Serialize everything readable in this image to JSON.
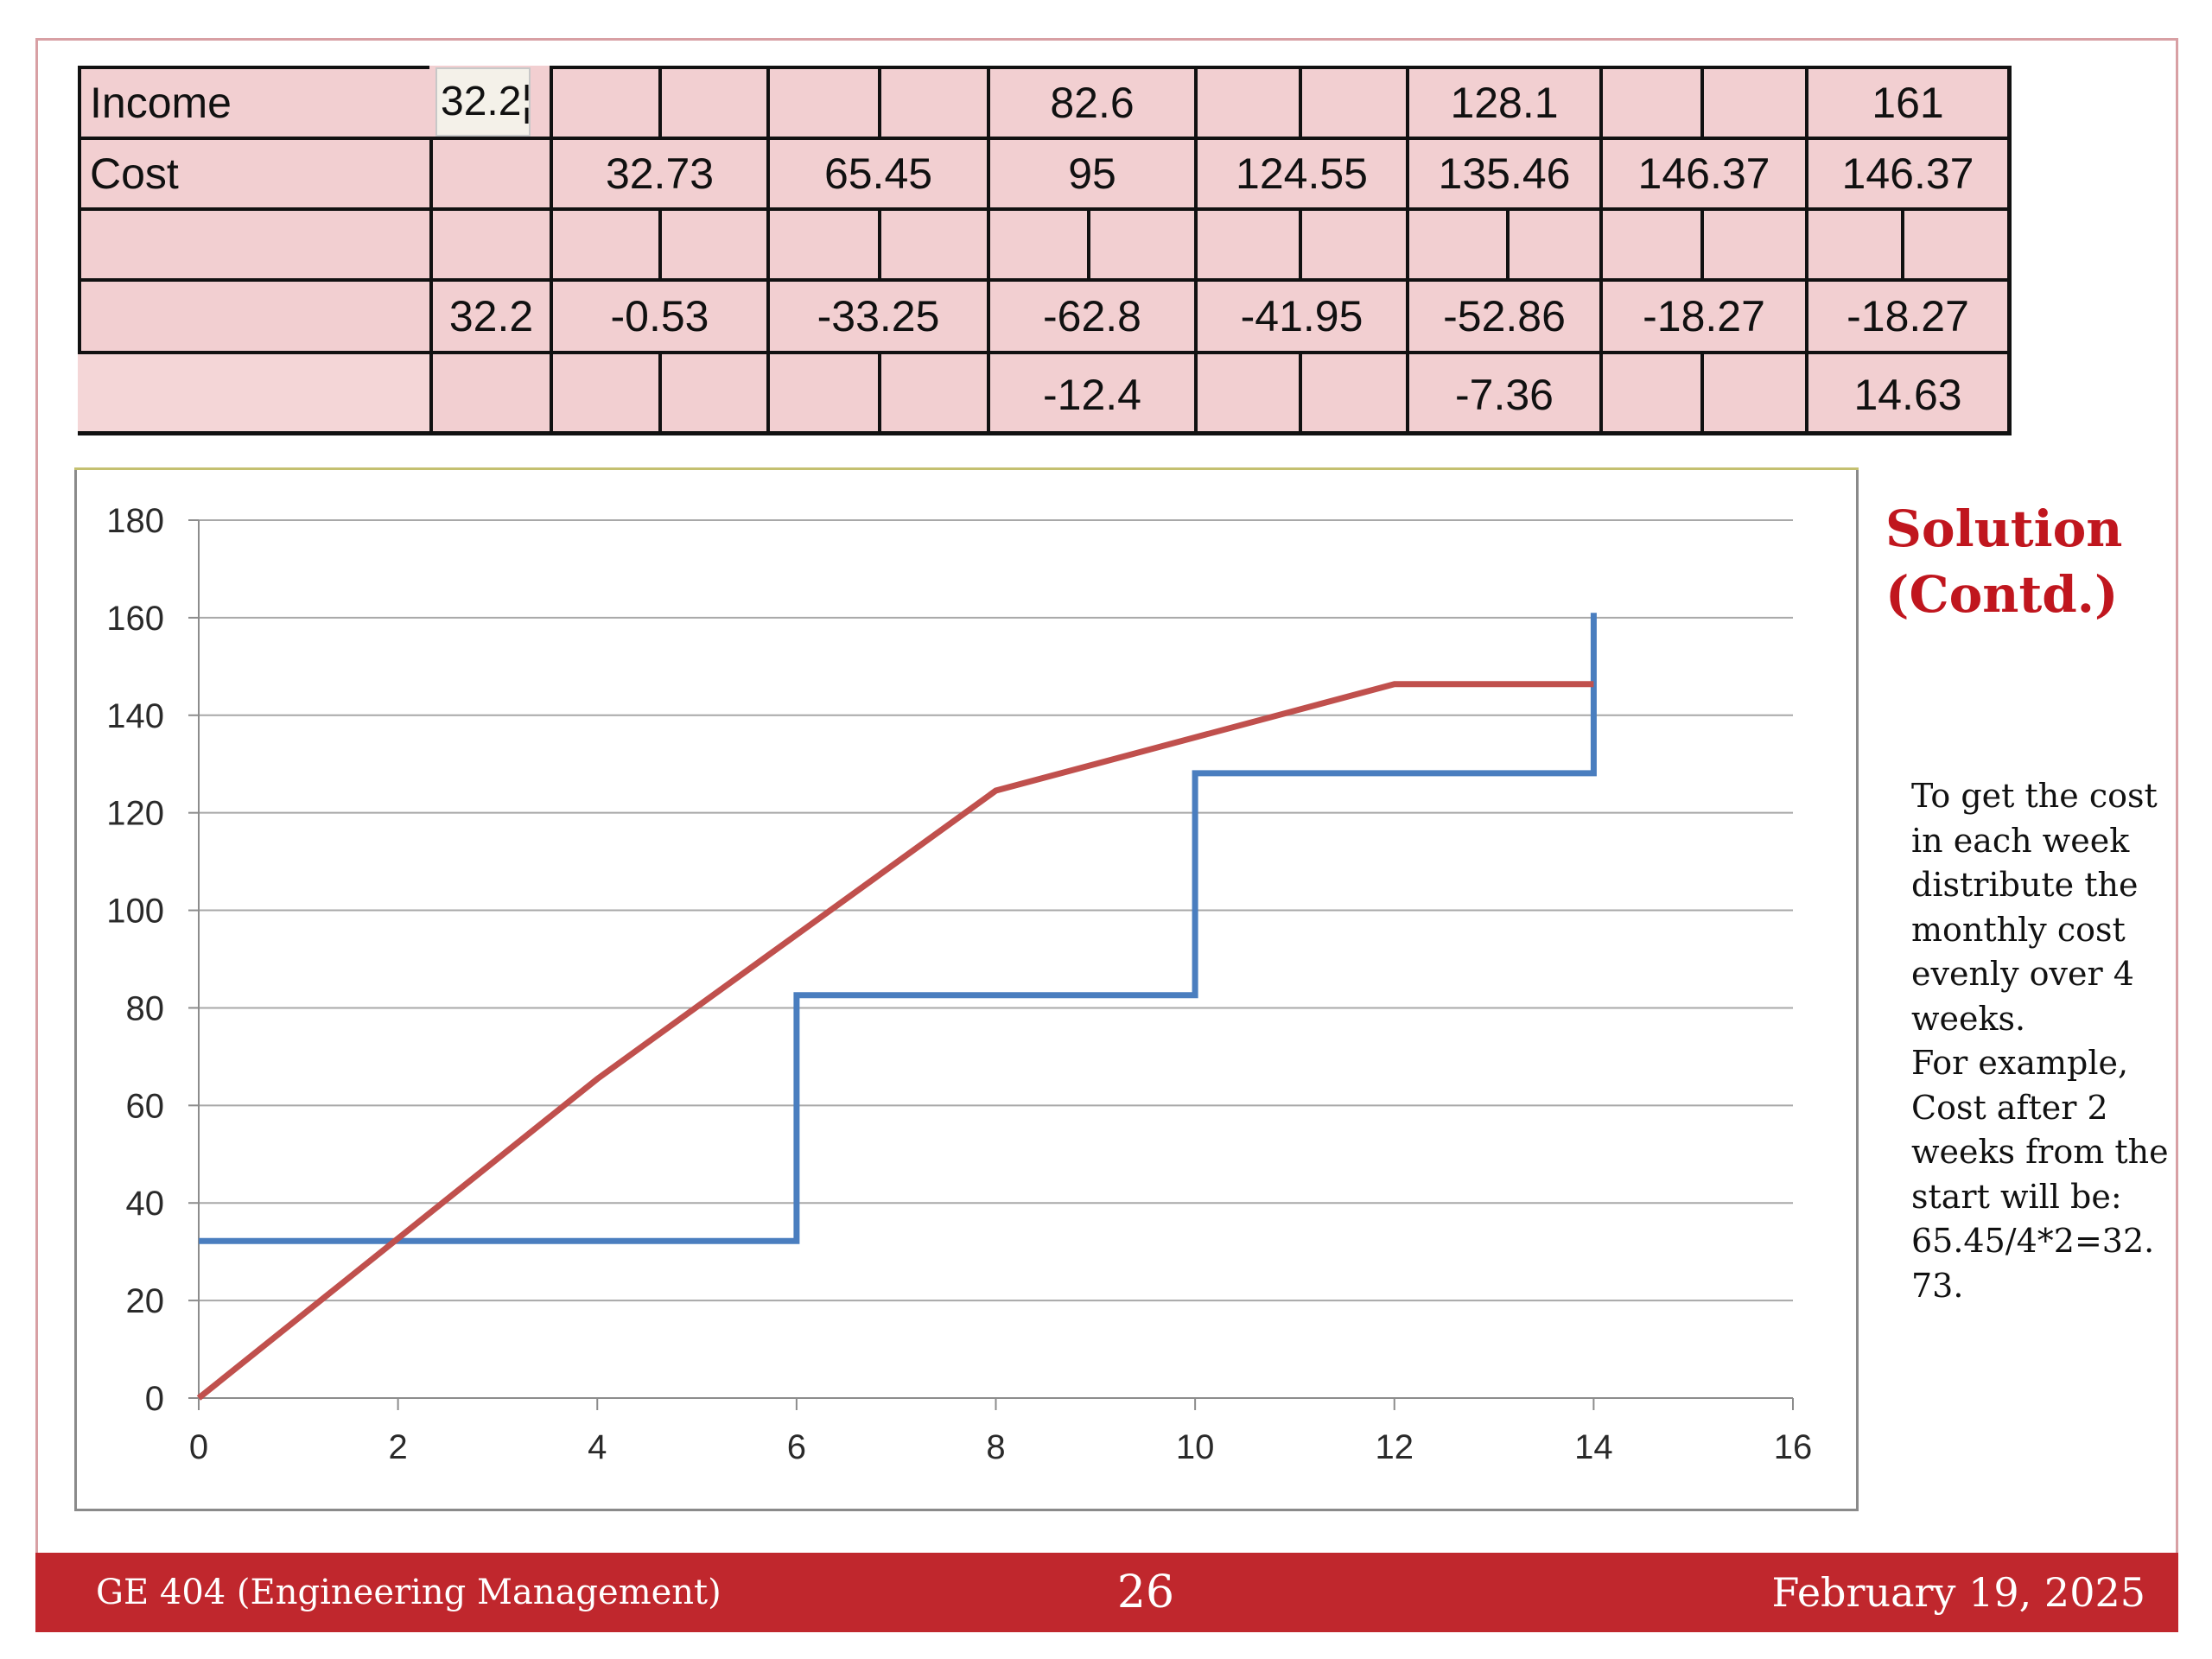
{
  "table": {
    "rows": [
      {
        "label": "Income",
        "note": "32.2¦",
        "cells": [
          {
            "span": [
              2,
              3
            ],
            "text": ""
          },
          {
            "span": [
              3,
              4
            ],
            "text": ""
          },
          {
            "span": [
              4,
              5
            ],
            "text": ""
          },
          {
            "span": [
              5,
              6
            ],
            "text": ""
          },
          {
            "span": [
              6,
              8
            ],
            "text": "82.6"
          },
          {
            "span": [
              8,
              9
            ],
            "text": ""
          },
          {
            "span": [
              9,
              10
            ],
            "text": ""
          },
          {
            "span": [
              10,
              12
            ],
            "text": "128.1"
          },
          {
            "span": [
              12,
              13
            ],
            "text": ""
          },
          {
            "span": [
              13,
              14
            ],
            "text": ""
          },
          {
            "span": [
              14,
              16
            ],
            "text": "161"
          }
        ]
      },
      {
        "label": "Cost",
        "cells": [
          {
            "span": [
              1,
              2
            ],
            "text": ""
          },
          {
            "span": [
              2,
              4
            ],
            "text": "32.73"
          },
          {
            "span": [
              4,
              6
            ],
            "text": "65.45"
          },
          {
            "span": [
              6,
              8
            ],
            "text": "95"
          },
          {
            "span": [
              8,
              10
            ],
            "text": "124.55"
          },
          {
            "span": [
              10,
              12
            ],
            "text": "135.46"
          },
          {
            "span": [
              12,
              14
            ],
            "text": "146.37"
          },
          {
            "span": [
              14,
              16
            ],
            "text": "146.37"
          }
        ]
      },
      {
        "label": "",
        "cells": [
          {
            "span": [
              1,
              2
            ],
            "text": ""
          },
          {
            "span": [
              2,
              3
            ],
            "text": ""
          },
          {
            "span": [
              3,
              4
            ],
            "text": ""
          },
          {
            "span": [
              4,
              5
            ],
            "text": ""
          },
          {
            "span": [
              5,
              6
            ],
            "text": ""
          },
          {
            "span": [
              6,
              7
            ],
            "text": ""
          },
          {
            "span": [
              7,
              8
            ],
            "text": ""
          },
          {
            "span": [
              8,
              9
            ],
            "text": ""
          },
          {
            "span": [
              9,
              10
            ],
            "text": ""
          },
          {
            "span": [
              10,
              11
            ],
            "text": ""
          },
          {
            "span": [
              11,
              12
            ],
            "text": ""
          },
          {
            "span": [
              12,
              13
            ],
            "text": ""
          },
          {
            "span": [
              13,
              14
            ],
            "text": ""
          },
          {
            "span": [
              14,
              15
            ],
            "text": ""
          },
          {
            "span": [
              15,
              16
            ],
            "text": ""
          }
        ]
      },
      {
        "label": "",
        "cells": [
          {
            "span": [
              1,
              2
            ],
            "text": "32.2"
          },
          {
            "span": [
              2,
              4
            ],
            "text": "-0.53"
          },
          {
            "span": [
              4,
              6
            ],
            "text": "-33.25"
          },
          {
            "span": [
              6,
              8
            ],
            "text": "-62.8"
          },
          {
            "span": [
              8,
              10
            ],
            "text": "-41.95"
          },
          {
            "span": [
              10,
              12
            ],
            "text": "-52.86"
          },
          {
            "span": [
              12,
              14
            ],
            "text": "-18.27"
          },
          {
            "span": [
              14,
              16
            ],
            "text": "-18.27"
          }
        ]
      },
      {
        "label": "",
        "cells": [
          {
            "span": [
              1,
              2
            ],
            "text": ""
          },
          {
            "span": [
              2,
              3
            ],
            "text": ""
          },
          {
            "span": [
              3,
              4
            ],
            "text": ""
          },
          {
            "span": [
              4,
              5
            ],
            "text": ""
          },
          {
            "span": [
              5,
              6
            ],
            "text": ""
          },
          {
            "span": [
              6,
              8
            ],
            "text": "-12.4"
          },
          {
            "span": [
              8,
              9
            ],
            "text": ""
          },
          {
            "span": [
              9,
              10
            ],
            "text": ""
          },
          {
            "span": [
              10,
              12
            ],
            "text": "-7.36"
          },
          {
            "span": [
              12,
              13
            ],
            "text": ""
          },
          {
            "span": [
              13,
              14
            ],
            "text": ""
          },
          {
            "span": [
              14,
              16
            ],
            "text": "14.63"
          }
        ]
      }
    ]
  },
  "chart_data": {
    "type": "line",
    "title": "",
    "xlabel": "",
    "ylabel": "",
    "xlim": [
      0,
      16
    ],
    "ylim": [
      0,
      180
    ],
    "x_ticks": [
      0,
      2,
      4,
      6,
      8,
      10,
      12,
      14,
      16
    ],
    "y_ticks": [
      0,
      20,
      40,
      60,
      80,
      100,
      120,
      140,
      160,
      180
    ],
    "grid": "horizontal",
    "legend": "none",
    "series": [
      {
        "color": "#4a7ebf",
        "points": [
          [
            0,
            32.2
          ],
          [
            6,
            32.2
          ],
          [
            6,
            82.6
          ],
          [
            10,
            82.6
          ],
          [
            10,
            128.1
          ],
          [
            14,
            128.1
          ],
          [
            14,
            161
          ]
        ]
      },
      {
        "color": "#c0504d",
        "points": [
          [
            0,
            0
          ],
          [
            2,
            32.73
          ],
          [
            4,
            65.45
          ],
          [
            6,
            95
          ],
          [
            8,
            124.55
          ],
          [
            10,
            135.46
          ],
          [
            12,
            146.37
          ],
          [
            14,
            146.37
          ]
        ]
      }
    ]
  },
  "heading": {
    "line1": "Solution",
    "line2": "(Contd.)"
  },
  "note": {
    "lines": [
      "To get the cost",
      "in each week",
      "distribute the",
      "monthly cost",
      "evenly over 4",
      "weeks.",
      "For example,",
      "Cost after 2",
      "weeks from the",
      "start will be:",
      "65.45/4*2=32.",
      "73."
    ]
  },
  "footer": {
    "course": "GE 404 (Engineering Management)",
    "page": "26",
    "date": "February 19, 2025"
  }
}
